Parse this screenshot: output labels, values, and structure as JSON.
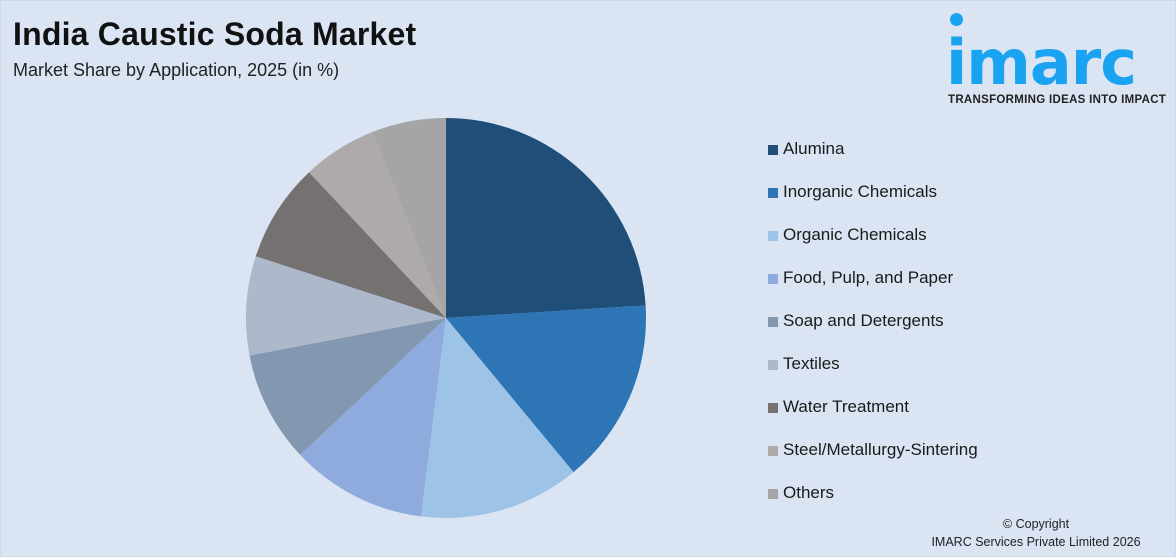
{
  "header": {
    "title": "India Caustic Soda Market",
    "subtitle": "Market Share by Application, 2025 (in %)"
  },
  "logo": {
    "word": "imarc",
    "tagline": "TRANSFORMING IDEAS INTO IMPACT",
    "color": "#1aa3f0"
  },
  "footer": {
    "copyright_line1": "© Copyright",
    "copyright_line2": "IMARC Services Private Limited 2026"
  },
  "chart_data": {
    "type": "pie",
    "title": "India Caustic Soda Market",
    "subtitle": "Market Share by Application, 2025 (in %)",
    "start_angle_deg": 0,
    "direction": "clockwise",
    "legend_position": "right",
    "data_labels": false,
    "categories": [
      "Alumina",
      "Inorganic Chemicals",
      "Organic Chemicals",
      "Food, Pulp, and Paper",
      "Soap and Detergents",
      "Textiles",
      "Water Treatment",
      "Steel/Metallurgy-Sintering",
      "Others"
    ],
    "values": [
      24,
      15,
      13,
      11,
      9,
      8,
      8,
      6,
      6
    ],
    "colors": [
      "#1f4e79",
      "#2e75b6",
      "#9dc3e6",
      "#8faadc",
      "#8497b0",
      "#adb9ca",
      "#767171",
      "#aeaaaa",
      "#a5a5a5"
    ]
  }
}
